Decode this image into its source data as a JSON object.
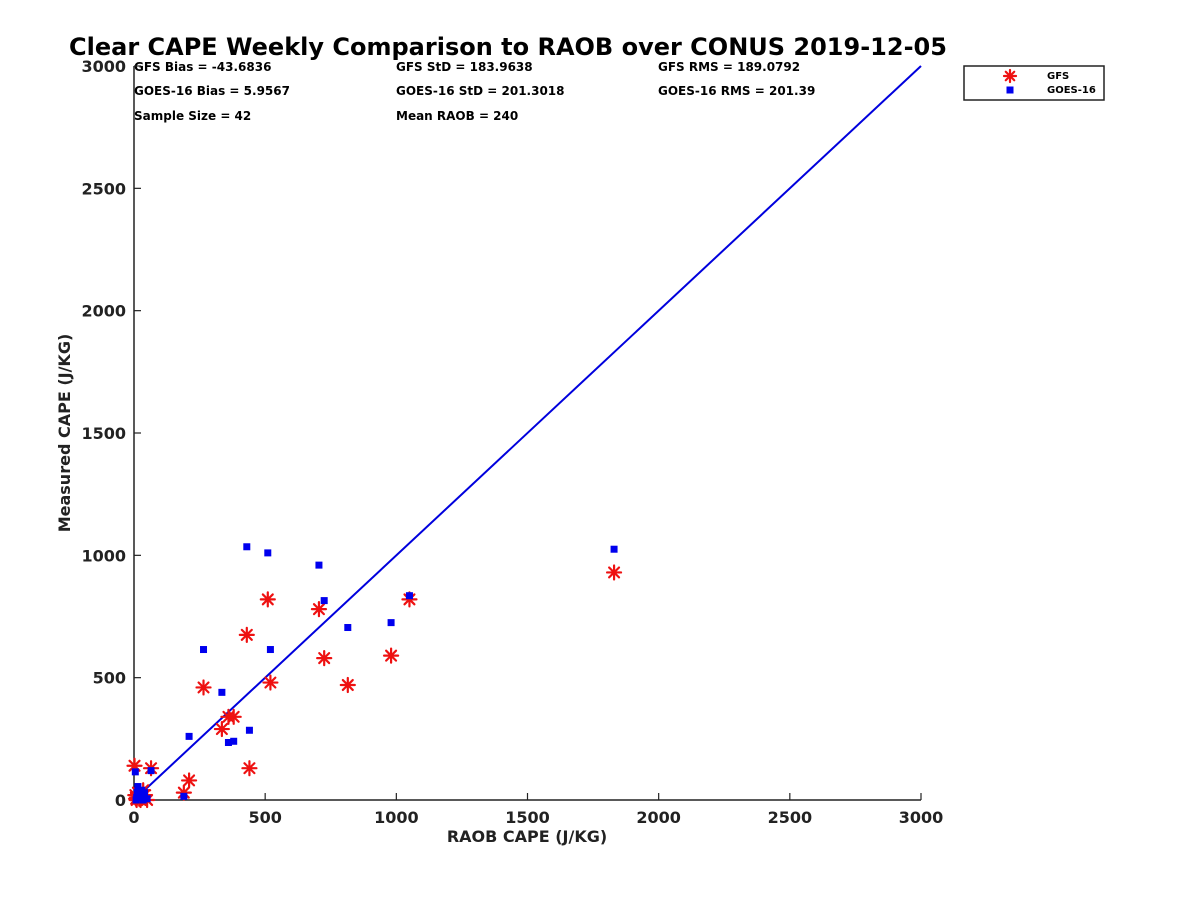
{
  "chart_data": {
    "type": "scatter",
    "title": "Clear CAPE Weekly Comparison to RAOB over CONUS 2019-12-05",
    "xlabel": "RAOB CAPE (J/KG)",
    "ylabel": "Measured CAPE (J/KG)",
    "xlim": [
      0,
      3000
    ],
    "ylim": [
      0,
      3000
    ],
    "x_ticks": [
      "0",
      "500",
      "1000",
      "1500",
      "2000",
      "2500",
      "3000"
    ],
    "y_ticks": [
      "0",
      "500",
      "1000",
      "1500",
      "2000",
      "2500",
      "3000"
    ],
    "grid": false,
    "legend_position": "top-right",
    "stats": [
      "GFS Bias = -43.6836",
      "GFS StD = 183.9638",
      "GFS RMS = 189.0792",
      "GOES-16 Bias = 5.9567",
      "GOES-16 StD = 201.3018",
      "GOES-16 RMS = 201.39",
      "Sample Size = 42",
      "Mean RAOB = 240"
    ],
    "reference_line": {
      "x": [
        0,
        3000
      ],
      "y": [
        0,
        3000
      ],
      "color": "#0000dd"
    },
    "series": [
      {
        "name": "GFS",
        "marker": "asterisk",
        "color": "#ee1111",
        "points": [
          [
            2,
            140
          ],
          [
            5,
            20
          ],
          [
            8,
            5
          ],
          [
            10,
            0
          ],
          [
            12,
            10
          ],
          [
            15,
            30
          ],
          [
            20,
            5
          ],
          [
            25,
            0
          ],
          [
            30,
            15
          ],
          [
            35,
            40
          ],
          [
            40,
            20
          ],
          [
            50,
            0
          ],
          [
            65,
            130
          ],
          [
            190,
            30
          ],
          [
            210,
            80
          ],
          [
            265,
            460
          ],
          [
            335,
            290
          ],
          [
            360,
            340
          ],
          [
            380,
            340
          ],
          [
            430,
            675
          ],
          [
            440,
            130
          ],
          [
            510,
            820
          ],
          [
            520,
            480
          ],
          [
            705,
            780
          ],
          [
            725,
            580
          ],
          [
            815,
            470
          ],
          [
            980,
            590
          ],
          [
            1050,
            820
          ],
          [
            1830,
            930
          ]
        ]
      },
      {
        "name": "GOES-16",
        "marker": "square",
        "color": "#0000ee",
        "points": [
          [
            5,
            115
          ],
          [
            8,
            0
          ],
          [
            10,
            10
          ],
          [
            12,
            30
          ],
          [
            15,
            55
          ],
          [
            20,
            20
          ],
          [
            25,
            10
          ],
          [
            30,
            40
          ],
          [
            35,
            0
          ],
          [
            40,
            30
          ],
          [
            50,
            5
          ],
          [
            65,
            120
          ],
          [
            190,
            15
          ],
          [
            210,
            260
          ],
          [
            265,
            615
          ],
          [
            335,
            440
          ],
          [
            360,
            235
          ],
          [
            380,
            240
          ],
          [
            430,
            1035
          ],
          [
            440,
            285
          ],
          [
            510,
            1010
          ],
          [
            520,
            615
          ],
          [
            705,
            960
          ],
          [
            725,
            815
          ],
          [
            815,
            705
          ],
          [
            980,
            725
          ],
          [
            1050,
            835
          ],
          [
            1830,
            1025
          ]
        ]
      }
    ]
  }
}
